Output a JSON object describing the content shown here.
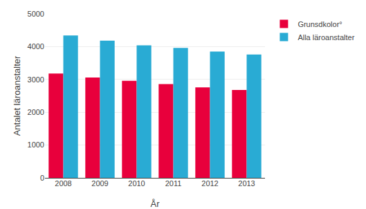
{
  "chart_data": {
    "type": "bar",
    "categories": [
      "2008",
      "2009",
      "2010",
      "2011",
      "2012",
      "2013"
    ],
    "series": [
      {
        "name": "Grunsdkolor°",
        "color": "#E8003C",
        "values": [
          3180,
          3060,
          2960,
          2860,
          2760,
          2680
        ]
      },
      {
        "name": "Alla läroanstalter",
        "color": "#29ABD4",
        "values": [
          4340,
          4180,
          4040,
          3960,
          3850,
          3760
        ]
      }
    ],
    "xlabel": "År",
    "ylabel": "Antalet läroanstalter",
    "ylim": [
      0,
      5000
    ],
    "yticks": [
      0,
      1000,
      2000,
      3000,
      4000,
      5000
    ],
    "grid": true,
    "legend": "right"
  }
}
